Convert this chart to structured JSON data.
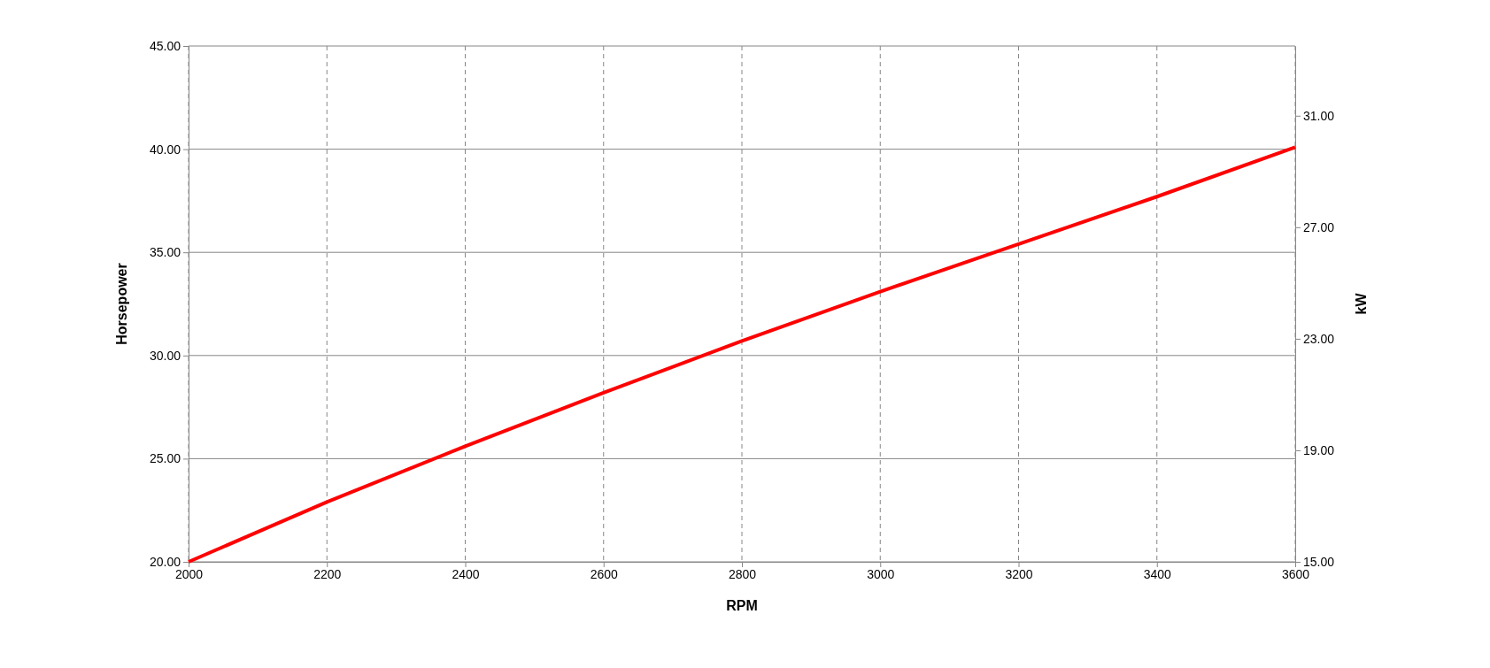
{
  "chart_data": {
    "type": "line",
    "xlabel": "RPM",
    "ylabel": "Horsepower",
    "y2label": "kW",
    "x": [
      2000,
      2200,
      2400,
      2600,
      2800,
      3000,
      3200,
      3400,
      3600
    ],
    "series": [
      {
        "color": "#ff0000",
        "values": [
          20,
          22.9,
          25.6,
          28.2,
          30.7,
          33.1,
          35.4,
          37.7,
          40.1
        ]
      }
    ],
    "xlim": [
      2000,
      3600
    ],
    "xticks": [
      2000,
      2200,
      2400,
      2600,
      2800,
      3000,
      3200,
      3400,
      3600
    ],
    "ylim": [
      20,
      45
    ],
    "yticks": [
      {
        "value": 20,
        "label": "20.00"
      },
      {
        "value": 25,
        "label": "25.00"
      },
      {
        "value": 30,
        "label": "30.00"
      },
      {
        "value": 35,
        "label": "35.00"
      },
      {
        "value": 40,
        "label": "40.00"
      },
      {
        "value": 45,
        "label": "45.00"
      }
    ],
    "y2lim": [
      15,
      33.5
    ],
    "y2ticks": [
      {
        "value": 15,
        "label": "15.00"
      },
      {
        "value": 19,
        "label": "19.00"
      },
      {
        "value": 23,
        "label": "23.00"
      },
      {
        "value": 27,
        "label": "27.00"
      },
      {
        "value": 31,
        "label": "31.00"
      }
    ],
    "grid": true,
    "marker": "none",
    "line_style": "solid"
  }
}
